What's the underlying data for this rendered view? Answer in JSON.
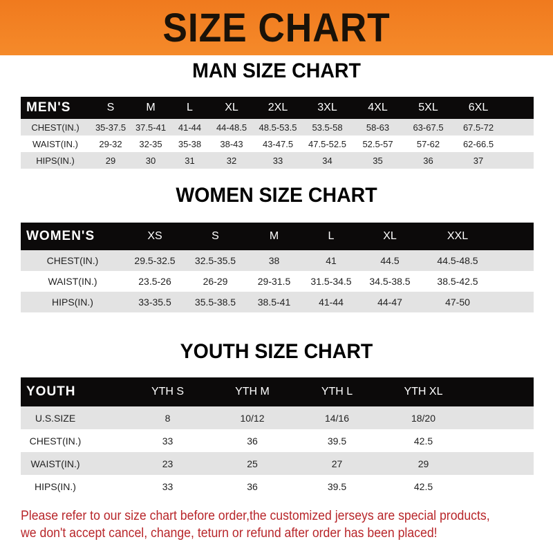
{
  "banner": {
    "title": "SIZE CHART",
    "bg": "#f07a1e"
  },
  "men": {
    "title": "MAN SIZE CHART",
    "header": [
      "MEN'S",
      "S",
      "M",
      "L",
      "XL",
      "2XL",
      "3XL",
      "4XL",
      "5XL",
      "6XL"
    ],
    "rows": [
      [
        "CHEST(IN.)",
        "35-37.5",
        "37.5-41",
        "41-44",
        "44-48.5",
        "48.5-53.5",
        "53.5-58",
        "58-63",
        "63-67.5",
        "67.5-72"
      ],
      [
        "WAIST(IN.)",
        "29-32",
        "32-35",
        "35-38",
        "38-43",
        "43-47.5",
        "47.5-52.5",
        "52.5-57",
        "57-62",
        "62-66.5"
      ],
      [
        "HIPS(IN.)",
        "29",
        "30",
        "31",
        "32",
        "33",
        "34",
        "35",
        "36",
        "37"
      ]
    ]
  },
  "women": {
    "title": "WOMEN SIZE CHART",
    "header": [
      "WOMEN'S",
      "XS",
      "S",
      "M",
      "L",
      "XL",
      "XXL"
    ],
    "rows": [
      [
        "CHEST(IN.)",
        "29.5-32.5",
        "32.5-35.5",
        "38",
        "41",
        "44.5",
        "44.5-48.5"
      ],
      [
        "WAIST(IN.)",
        "23.5-26",
        "26-29",
        "29-31.5",
        "31.5-34.5",
        "34.5-38.5",
        "38.5-42.5"
      ],
      [
        "HIPS(IN.)",
        "33-35.5",
        "35.5-38.5",
        "38.5-41",
        "41-44",
        "44-47",
        "47-50"
      ]
    ]
  },
  "youth": {
    "title": "YOUTH SIZE CHART",
    "header": [
      "YOUTH",
      "YTH S",
      "YTH M",
      "YTH L",
      "YTH XL"
    ],
    "rows": [
      [
        "U.S.SIZE",
        "8",
        "10/12",
        "14/16",
        "18/20"
      ],
      [
        "CHEST(IN.)",
        "33",
        "36",
        "39.5",
        "42.5"
      ],
      [
        "WAIST(IN.)",
        "23",
        "25",
        "27",
        "29"
      ],
      [
        "HIPS(IN.)",
        "33",
        "36",
        "39.5",
        "42.5"
      ]
    ]
  },
  "footer": {
    "line1": "Please refer to our size chart before order,the customized jerseys are special products,",
    "line2": "we don't accept cancel, change, teturn or refund after order has been placed!",
    "color": "#b8262a"
  }
}
